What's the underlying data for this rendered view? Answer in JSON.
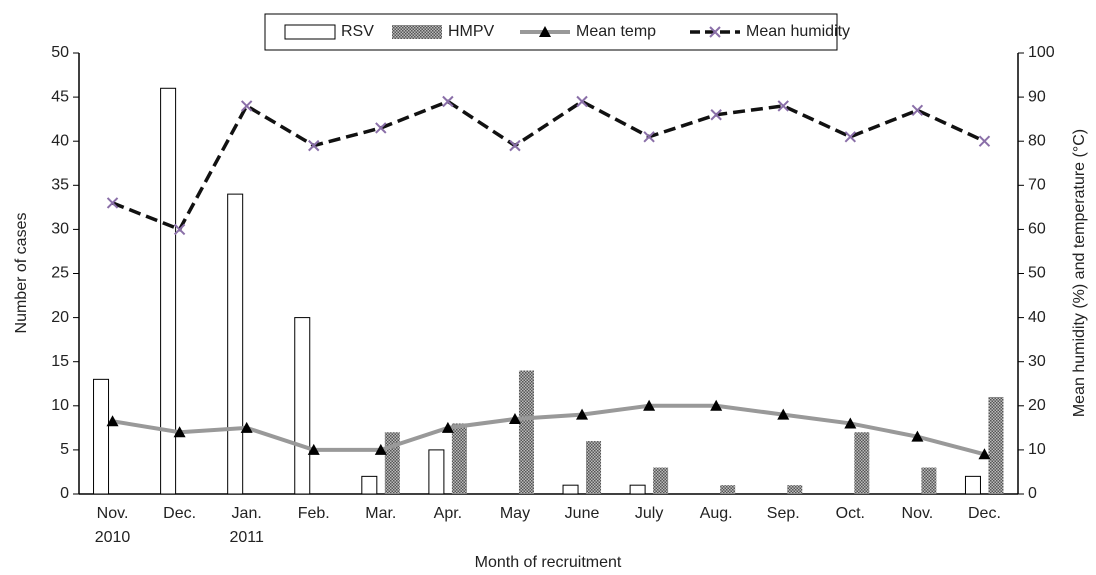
{
  "chart_data": {
    "type": "bar-line",
    "x_label": "Month of recruitment",
    "y_label": "Number of cases",
    "y2_label": "Mean humidity (%) and temperature (°C)",
    "categories": [
      "Nov.\n2010",
      "Dec.",
      "Jan.\n2011",
      "Feb.",
      "Mar.",
      "Apr.",
      "May",
      "June",
      "July",
      "Aug.",
      "Sep.",
      "Oct.",
      "Nov.",
      "Dec."
    ],
    "series": [
      {
        "name": "RSV",
        "type": "bar",
        "color": "#ffffff",
        "values": [
          13,
          46,
          34,
          20,
          2,
          5,
          0,
          1,
          1,
          0,
          0,
          0,
          0,
          2
        ]
      },
      {
        "name": "HMPV",
        "type": "bar",
        "color": "#777777",
        "values": [
          0,
          0,
          0,
          0,
          7,
          8,
          14,
          6,
          3,
          1,
          1,
          7,
          3,
          11
        ]
      },
      {
        "name": "Mean temp",
        "type": "line",
        "axis": "y2",
        "color": "#999999",
        "values": [
          16.5,
          14,
          15,
          10,
          10,
          15,
          17,
          18,
          20,
          20,
          18,
          16,
          13,
          9
        ]
      },
      {
        "name": "Mean humidity",
        "type": "line",
        "axis": "y2",
        "color": "#111111",
        "values": [
          66,
          60,
          88,
          79,
          83,
          89,
          79,
          89,
          81,
          86,
          88,
          81,
          87,
          80
        ]
      }
    ],
    "ylim": [
      0,
      50
    ],
    "yticks": [
      0,
      5,
      10,
      15,
      20,
      25,
      30,
      35,
      40,
      45,
      50
    ],
    "y2lim": [
      0,
      100
    ],
    "y2ticks": [
      0,
      10,
      20,
      30,
      40,
      50,
      60,
      70,
      80,
      90,
      100
    ],
    "legend": "top"
  }
}
